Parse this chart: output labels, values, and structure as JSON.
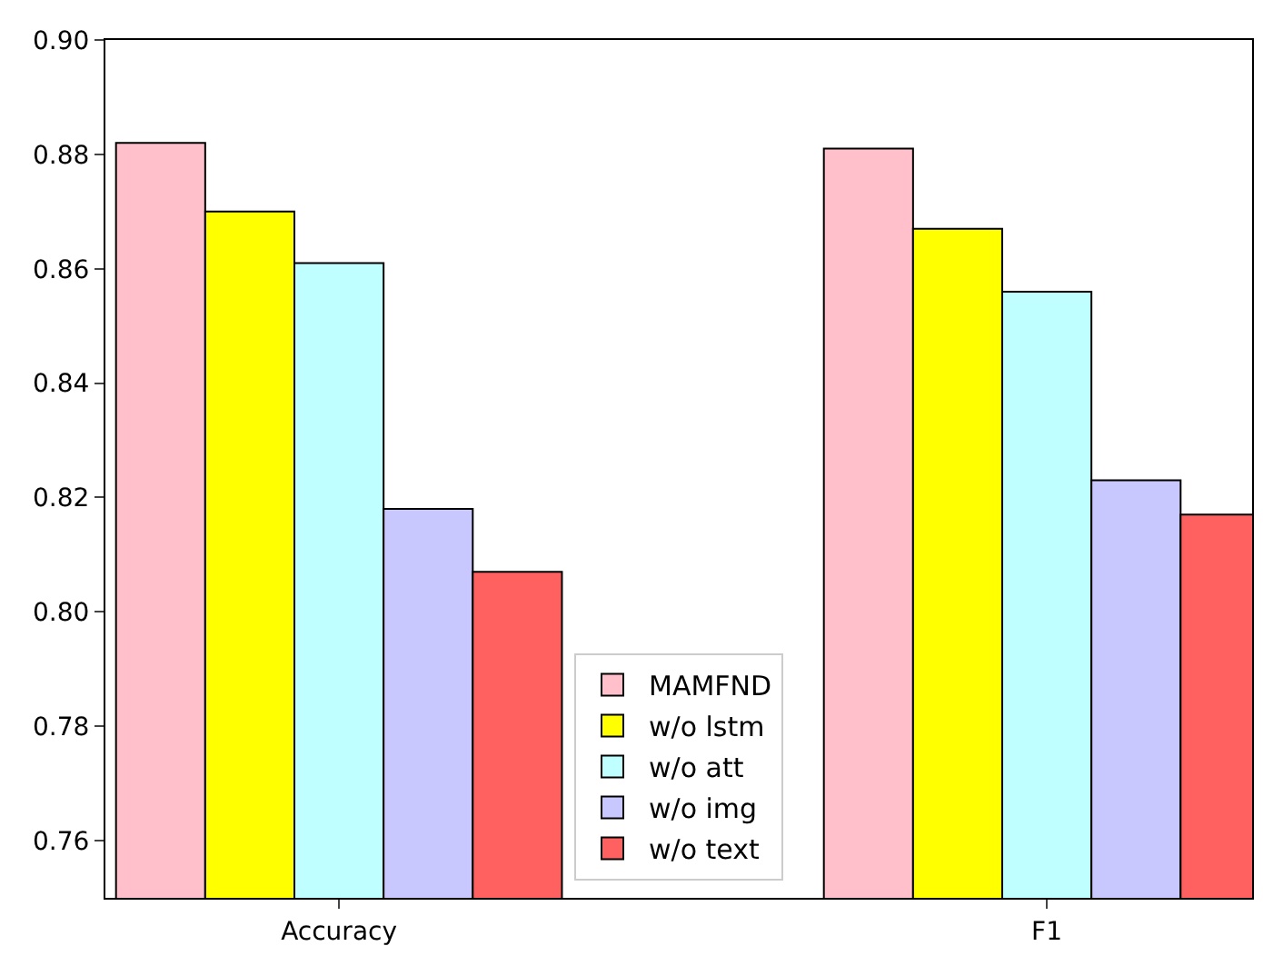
{
  "chart_data": {
    "type": "bar",
    "categories": [
      "Accuracy",
      "F1"
    ],
    "series": [
      {
        "name": "MAMFND",
        "color": "#ffc0cb",
        "values": [
          0.882,
          0.881
        ]
      },
      {
        "name": "w/o lstm",
        "color": "#ffff00",
        "values": [
          0.87,
          0.867
        ]
      },
      {
        "name": "w/o att",
        "color": "#c0ffff",
        "values": [
          0.861,
          0.856
        ]
      },
      {
        "name": "w/o img",
        "color": "#c8c8ff",
        "values": [
          0.818,
          0.823
        ]
      },
      {
        "name": "w/o text",
        "color": "#ff6060",
        "values": [
          0.807,
          0.817
        ]
      }
    ],
    "ylim": [
      0.75,
      0.9
    ],
    "yticks": [
      0.76,
      0.78,
      {
        "value": 0.8,
        "label": "0.80"
      },
      0.82,
      0.84,
      0.86,
      0.88,
      {
        "value": 0.9,
        "label": "0.90"
      }
    ],
    "legend": "bottom"
  }
}
